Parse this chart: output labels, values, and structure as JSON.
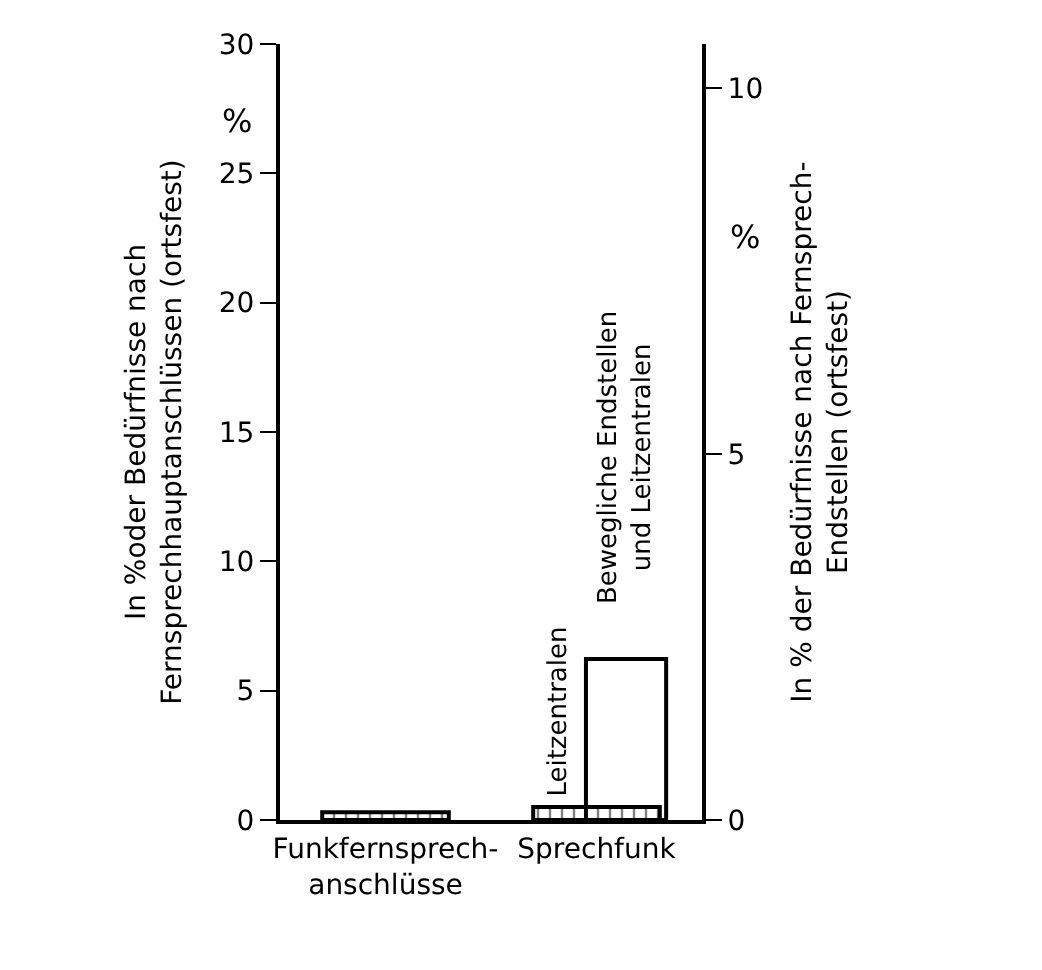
{
  "chart_data": {
    "type": "bar",
    "categories": [
      "Funkfernsprech-\nanschlüsse",
      "Sprechfunk"
    ],
    "ylabel": "In %oder Bedürfnisse nach\nFernsprechhauptanschlüssen (ortsfest)",
    "y2label": "In % der Bedürfnisse nach Fernsprech-\nEndstellen (ortsfest)",
    "annotations": [
      "%",
      "%"
    ],
    "series": [
      {
        "name": "Leitzentralen",
        "color": "#000000",
        "values": [
          0.3,
          0.5
        ]
      },
      {
        "name": "Bewegliche Endstellen\nund Leitzentralen",
        "color": "#000000",
        "axis": "y2",
        "values": [
          null,
          2.2
        ]
      }
    ],
    "ylim": [
      0,
      30
    ],
    "yticks": [
      0,
      5,
      10,
      15,
      20,
      25,
      30
    ],
    "y2lim": [
      0,
      10.6
    ],
    "y2ticks": [
      0,
      5,
      10
    ],
    "grid": false,
    "legend": false
  }
}
